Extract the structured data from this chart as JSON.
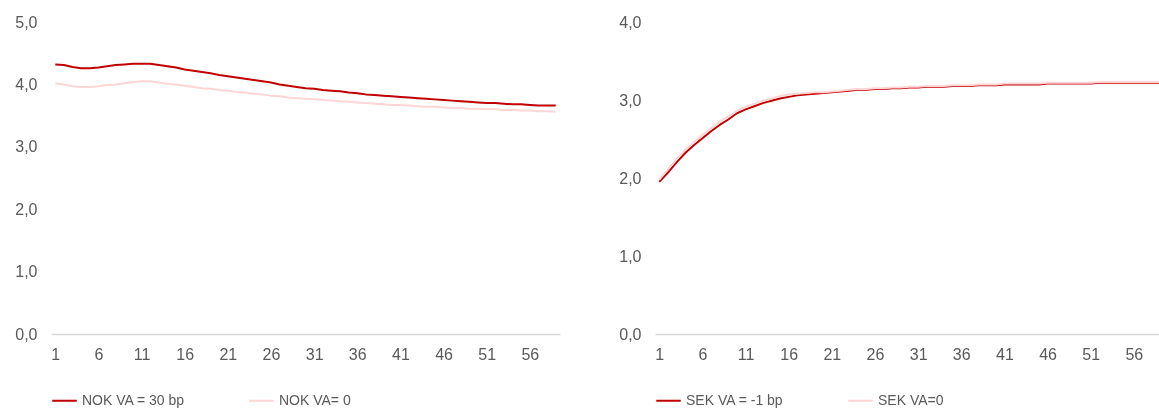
{
  "chart_data": [
    {
      "type": "line",
      "x": [
        1,
        2,
        3,
        4,
        5,
        6,
        7,
        8,
        9,
        10,
        11,
        12,
        13,
        14,
        15,
        16,
        17,
        18,
        19,
        20,
        21,
        22,
        23,
        24,
        25,
        26,
        27,
        28,
        29,
        30,
        31,
        32,
        33,
        34,
        35,
        36,
        37,
        38,
        39,
        40,
        41,
        42,
        43,
        44,
        45,
        46,
        47,
        48,
        49,
        50,
        51,
        52,
        53,
        54,
        55,
        56,
        57,
        58,
        59
      ],
      "xlim": [
        0.5,
        59.5
      ],
      "xticks": [
        1,
        6,
        11,
        16,
        21,
        26,
        31,
        36,
        41,
        46,
        51,
        56
      ],
      "ylim": [
        0,
        5
      ],
      "yticks": [
        {
          "value": 0,
          "label": "0,0"
        },
        {
          "value": 1,
          "label": "1,0"
        },
        {
          "value": 2,
          "label": "2,0"
        },
        {
          "value": 3,
          "label": "3,0"
        },
        {
          "value": 4,
          "label": "4,0"
        },
        {
          "value": 5,
          "label": "5,0"
        }
      ],
      "legend": "bottom",
      "series": [
        {
          "name": "NOK VA = 30 bp",
          "color": "#c00000",
          "values": [
            4.32,
            4.31,
            4.28,
            4.26,
            4.26,
            4.27,
            4.29,
            4.31,
            4.32,
            4.33,
            4.33,
            4.33,
            4.31,
            4.29,
            4.27,
            4.24,
            4.22,
            4.2,
            4.18,
            4.15,
            4.13,
            4.11,
            4.09,
            4.07,
            4.05,
            4.03,
            4.0,
            3.98,
            3.96,
            3.94,
            3.93,
            3.91,
            3.9,
            3.89,
            3.87,
            3.86,
            3.84,
            3.83,
            3.82,
            3.81,
            3.8,
            3.79,
            3.78,
            3.77,
            3.76,
            3.75,
            3.74,
            3.73,
            3.72,
            3.71,
            3.7,
            3.7,
            3.69,
            3.68,
            3.68,
            3.67,
            3.66,
            3.66,
            3.66
          ]
        },
        {
          "name": "NOK VA= 0",
          "color": "#ffd5d5",
          "values": [
            4.02,
            4.0,
            3.97,
            3.96,
            3.96,
            3.97,
            3.99,
            4.0,
            4.02,
            4.04,
            4.05,
            4.05,
            4.03,
            4.01,
            4.0,
            3.98,
            3.96,
            3.94,
            3.93,
            3.91,
            3.9,
            3.88,
            3.87,
            3.85,
            3.84,
            3.82,
            3.81,
            3.79,
            3.78,
            3.77,
            3.76,
            3.75,
            3.74,
            3.73,
            3.72,
            3.71,
            3.7,
            3.69,
            3.68,
            3.67,
            3.67,
            3.66,
            3.65,
            3.64,
            3.64,
            3.63,
            3.62,
            3.62,
            3.61,
            3.61,
            3.6,
            3.6,
            3.59,
            3.59,
            3.58,
            3.58,
            3.57,
            3.57,
            3.56
          ]
        }
      ]
    },
    {
      "type": "line",
      "x": [
        1,
        2,
        3,
        4,
        5,
        6,
        7,
        8,
        9,
        10,
        11,
        12,
        13,
        14,
        15,
        16,
        17,
        18,
        19,
        20,
        21,
        22,
        23,
        24,
        25,
        26,
        27,
        28,
        29,
        30,
        31,
        32,
        33,
        34,
        35,
        36,
        37,
        38,
        39,
        40,
        41,
        42,
        43,
        44,
        45,
        46,
        47,
        48,
        49,
        50,
        51,
        52,
        53,
        54,
        55,
        56,
        57,
        58,
        59
      ],
      "xlim": [
        0.5,
        59.5
      ],
      "xticks": [
        1,
        6,
        11,
        16,
        21,
        26,
        31,
        36,
        41,
        46,
        51,
        56
      ],
      "ylim": [
        0,
        4
      ],
      "yticks": [
        {
          "value": 0,
          "label": "0,0"
        },
        {
          "value": 1,
          "label": "1,0"
        },
        {
          "value": 2,
          "label": "2,0"
        },
        {
          "value": 3,
          "label": "3,0"
        },
        {
          "value": 4,
          "label": "4,0"
        }
      ],
      "legend": "bottom",
      "series": [
        {
          "name": "SEK VA = -1 bp",
          "color": "#c00000",
          "values": [
            1.95,
            2.07,
            2.2,
            2.32,
            2.42,
            2.51,
            2.6,
            2.68,
            2.75,
            2.83,
            2.88,
            2.92,
            2.96,
            2.99,
            3.02,
            3.04,
            3.06,
            3.07,
            3.08,
            3.09,
            3.1,
            3.11,
            3.12,
            3.13,
            3.13,
            3.14,
            3.14,
            3.15,
            3.15,
            3.16,
            3.16,
            3.17,
            3.17,
            3.17,
            3.18,
            3.18,
            3.18,
            3.19,
            3.19,
            3.19,
            3.2,
            3.2,
            3.2,
            3.2,
            3.2,
            3.21,
            3.21,
            3.21,
            3.21,
            3.21,
            3.21,
            3.22,
            3.22,
            3.22,
            3.22,
            3.22,
            3.22,
            3.22,
            3.22
          ]
        },
        {
          "name": "SEK VA=0",
          "color": "#ffd5d5",
          "values": [
            1.98,
            2.11,
            2.24,
            2.36,
            2.46,
            2.55,
            2.64,
            2.72,
            2.79,
            2.86,
            2.91,
            2.95,
            2.99,
            3.02,
            3.05,
            3.07,
            3.08,
            3.09,
            3.1,
            3.1,
            3.11,
            3.12,
            3.13,
            3.14,
            3.14,
            3.15,
            3.15,
            3.16,
            3.16,
            3.17,
            3.17,
            3.18,
            3.18,
            3.18,
            3.19,
            3.19,
            3.19,
            3.2,
            3.2,
            3.2,
            3.21,
            3.21,
            3.21,
            3.21,
            3.21,
            3.22,
            3.22,
            3.22,
            3.22,
            3.22,
            3.22,
            3.23,
            3.23,
            3.23,
            3.23,
            3.23,
            3.23,
            3.23,
            3.23
          ]
        }
      ]
    }
  ]
}
